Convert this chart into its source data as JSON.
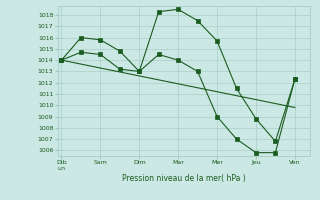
{
  "background_color": "#cce8e4",
  "grid_color": "#a0c8c0",
  "line_color": "#1a5c20",
  "xlabel_text": "Pression niveau de la mer( hPa )",
  "xtick_labels": [
    "Dib\nun",
    "Sam",
    "Dim",
    "Mar",
    "Mer",
    "Jeu",
    "Ven"
  ],
  "ylim": [
    1005.5,
    1018.8
  ],
  "yticks": [
    1006,
    1007,
    1008,
    1009,
    1010,
    1011,
    1012,
    1013,
    1014,
    1015,
    1016,
    1017,
    1018
  ],
  "s1_x": [
    0,
    0.5,
    1.0,
    1.5,
    2.0,
    2.5,
    3.0,
    3.5,
    4.0,
    4.5,
    5.0,
    5.5,
    6.0
  ],
  "s1_y": [
    1014.0,
    1016.0,
    1015.8,
    1014.8,
    1013.0,
    1018.3,
    1018.5,
    1017.5,
    1015.7,
    1011.5,
    1008.8,
    1006.8,
    1012.3
  ],
  "s2_x": [
    0,
    0.5,
    1.0,
    1.5,
    2.0,
    2.5,
    3.0,
    3.5,
    4.0,
    4.5,
    5.0,
    5.5,
    6.0
  ],
  "s2_y": [
    1014.0,
    1014.7,
    1014.5,
    1013.2,
    1013.0,
    1014.5,
    1014.0,
    1013.0,
    1009.0,
    1007.0,
    1005.8,
    1005.8,
    1012.3
  ],
  "s3_x": [
    0,
    1,
    2,
    3,
    4,
    5,
    6
  ],
  "s3_y": [
    1014.0,
    1013.3,
    1012.6,
    1011.9,
    1011.2,
    1010.5,
    1009.8
  ],
  "xtick_positions": [
    0,
    1,
    2,
    3,
    4,
    5,
    6
  ],
  "xlim": [
    -0.1,
    6.4
  ]
}
